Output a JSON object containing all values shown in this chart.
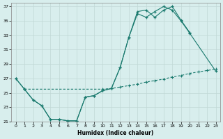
{
  "xlabel": "Humidex (Indice chaleur)",
  "background_color": "#d8eeed",
  "grid_color": "#c0d8d5",
  "line_color": "#1a7a6e",
  "xlim": [
    -0.5,
    23.5
  ],
  "ylim": [
    21,
    37.5
  ],
  "yticks": [
    21,
    23,
    25,
    27,
    29,
    31,
    33,
    35,
    37
  ],
  "xticks": [
    0,
    1,
    2,
    3,
    4,
    5,
    6,
    7,
    8,
    9,
    10,
    11,
    12,
    13,
    14,
    15,
    16,
    17,
    18,
    19,
    20,
    21,
    22,
    23
  ],
  "line1_x": [
    0,
    1,
    2,
    3,
    4,
    5,
    6,
    7,
    8,
    9,
    10,
    11,
    12,
    13,
    14,
    15,
    16,
    17,
    18,
    19,
    20
  ],
  "line1_y": [
    27.0,
    25.5,
    24.0,
    23.2,
    21.3,
    21.3,
    21.1,
    21.1,
    24.4,
    24.6,
    25.3,
    25.6,
    28.5,
    32.7,
    36.3,
    36.5,
    35.5,
    36.5,
    37.0,
    35.1,
    33.4
  ],
  "line2_x": [
    0,
    1,
    2,
    3,
    4,
    5,
    6,
    7,
    8,
    9,
    10,
    11,
    12,
    13,
    14,
    15,
    16,
    17,
    18,
    19,
    20,
    23
  ],
  "line2_y": [
    27.0,
    25.5,
    24.0,
    23.2,
    21.3,
    21.3,
    21.1,
    21.1,
    24.4,
    24.6,
    25.3,
    25.6,
    28.5,
    32.7,
    36.0,
    35.5,
    36.3,
    37.0,
    36.5,
    35.0,
    33.3,
    28.0
  ],
  "line3_x": [
    1,
    10,
    11,
    12,
    13,
    14,
    15,
    16,
    17,
    18,
    19,
    20,
    21,
    22,
    23
  ],
  "line3_y": [
    25.5,
    25.5,
    25.6,
    25.8,
    26.0,
    26.2,
    26.5,
    26.7,
    26.9,
    27.2,
    27.4,
    27.7,
    27.9,
    28.1,
    28.3
  ]
}
